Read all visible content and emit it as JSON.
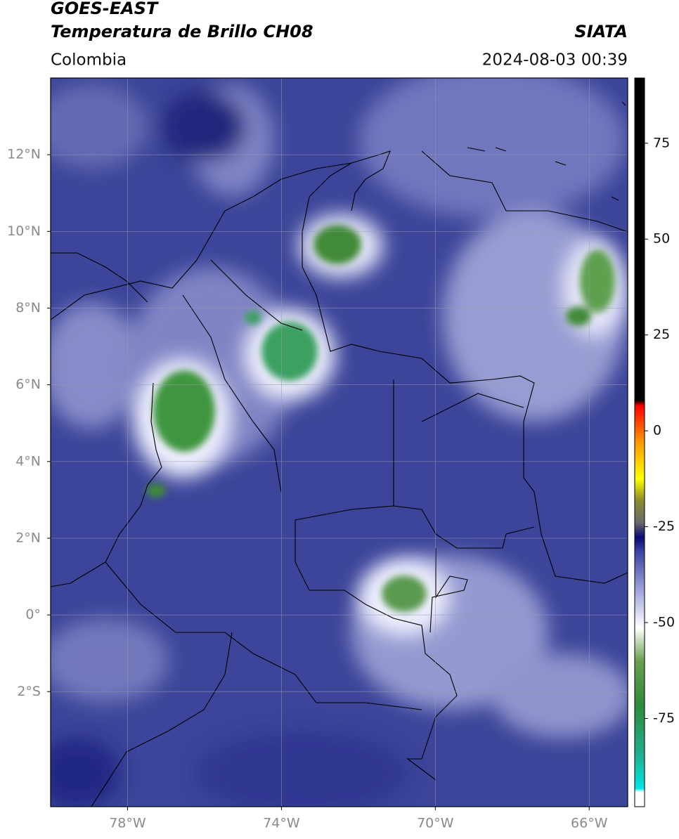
{
  "header": {
    "title": "GOES-EAST",
    "subtitle": "Temperatura de Brillo CH08",
    "source": "SIATA",
    "region": "Colombia",
    "datetime": "2024-08-03 00:39"
  },
  "map": {
    "xlim": [
      -80,
      -65
    ],
    "ylim": [
      -5,
      14
    ],
    "xticks": [
      {
        "value": -78,
        "label": "78°W"
      },
      {
        "value": -74,
        "label": "74°W"
      },
      {
        "value": -70,
        "label": "70°W"
      },
      {
        "value": -66,
        "label": "66°W"
      }
    ],
    "yticks": [
      {
        "value": 12,
        "label": "12°N"
      },
      {
        "value": 10,
        "label": "10°N"
      },
      {
        "value": 8,
        "label": "8°N"
      },
      {
        "value": 6,
        "label": "6°N"
      },
      {
        "value": 4,
        "label": "4°N"
      },
      {
        "value": 2,
        "label": "2°N"
      },
      {
        "value": 0,
        "label": "0°"
      },
      {
        "value": -2,
        "label": "2°S"
      }
    ],
    "grid": true
  },
  "colorbar": {
    "lim": [
      -98,
      92
    ],
    "ticks": [
      75,
      50,
      25,
      0,
      -25,
      -50,
      -75
    ]
  }
}
